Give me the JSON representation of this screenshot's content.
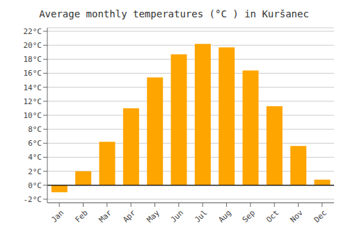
{
  "chart_data": {
    "type": "bar",
    "title": "Average monthly temperatures (°C ) in Kuršanec",
    "categories": [
      "Jan",
      "Feb",
      "Mar",
      "Apr",
      "May",
      "Jun",
      "Jul",
      "Aug",
      "Sep",
      "Oct",
      "Nov",
      "Dec"
    ],
    "values": [
      -1.0,
      2.0,
      6.2,
      11.0,
      15.4,
      18.7,
      20.2,
      19.7,
      16.4,
      11.3,
      5.6,
      0.8
    ],
    "color": "#FFA500",
    "ylim": [
      -2.5,
      22.5
    ],
    "yticks": [
      {
        "value": -2,
        "label": "-2°C"
      },
      {
        "value": 0,
        "label": "0°C"
      },
      {
        "value": 2,
        "label": "2°C"
      },
      {
        "value": 4,
        "label": "4°C"
      },
      {
        "value": 6,
        "label": "6°C"
      },
      {
        "value": 8,
        "label": "8°C"
      },
      {
        "value": 10,
        "label": "10°C"
      },
      {
        "value": 12,
        "label": "12°C"
      },
      {
        "value": 14,
        "label": "14°C"
      },
      {
        "value": 16,
        "label": "16°C"
      },
      {
        "value": 18,
        "label": "18°C"
      },
      {
        "value": 20,
        "label": "20°C"
      },
      {
        "value": 22,
        "label": "22°C"
      }
    ],
    "grid": true
  }
}
